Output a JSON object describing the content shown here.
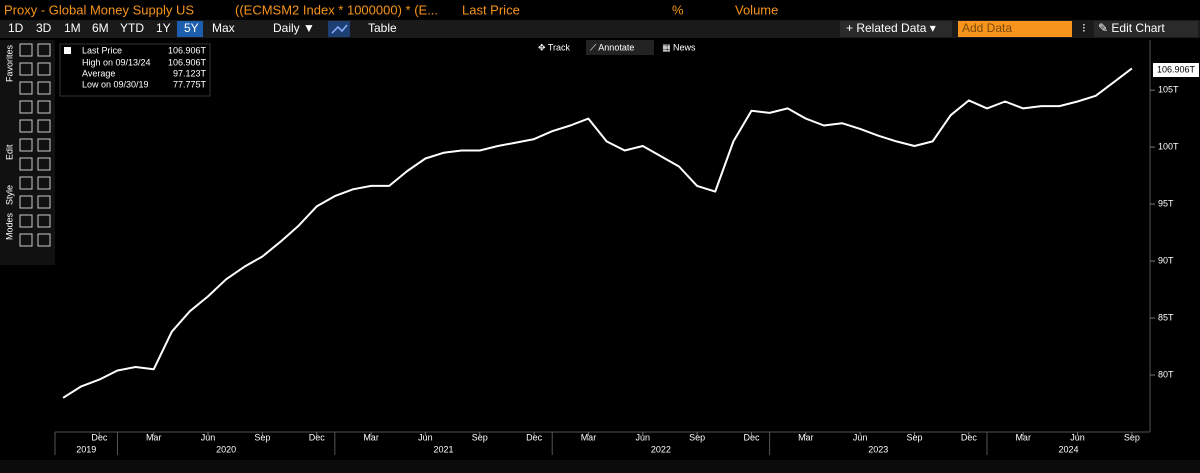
{
  "header": {
    "title": "Proxy - Global Money Supply US",
    "formula": "((ECMSM2 Index * 1000000) * (E...",
    "field": "Last Price",
    "percent": "%",
    "volume": "Volume"
  },
  "toolbar": {
    "ranges": [
      "1D",
      "3D",
      "1M",
      "6M",
      "YTD",
      "1Y",
      "5Y",
      "Max"
    ],
    "active": "5Y",
    "period": "Daily ▼",
    "table": "Table",
    "related": "+ Related Data ▾",
    "add": "Add Data",
    "edit": "✎ Edit Chart"
  },
  "side_tabs": [
    "Favorites",
    "Edit",
    "Style",
    "Modes"
  ],
  "chart_tools": [
    "✥ Track",
    "⟋ Annotate",
    "▦ News"
  ],
  "legend_stats": [
    {
      "label": "High on 09/13/24",
      "value": "106.906T"
    },
    {
      "label": "Average",
      "value": "97.123T"
    },
    {
      "label": "Low on 09/30/19",
      "value": "77.775T"
    }
  ],
  "last_value_label": "106.906T",
  "chart_data": {
    "type": "line",
    "x": [
      "2019-10",
      "2019-11",
      "2019-12",
      "2020-01",
      "2020-02",
      "2020-03",
      "2020-04",
      "2020-05",
      "2020-06",
      "2020-07",
      "2020-08",
      "2020-09",
      "2020-10",
      "2020-11",
      "2020-12",
      "2021-01",
      "2021-02",
      "2021-03",
      "2021-04",
      "2021-05",
      "2021-06",
      "2021-07",
      "2021-08",
      "2021-09",
      "2021-10",
      "2021-11",
      "2021-12",
      "2022-01",
      "2022-02",
      "2022-03",
      "2022-04",
      "2022-05",
      "2022-06",
      "2022-07",
      "2022-08",
      "2022-09",
      "2022-10",
      "2022-11",
      "2022-12",
      "2023-01",
      "2023-02",
      "2023-03",
      "2023-04",
      "2023-05",
      "2023-06",
      "2023-07",
      "2023-08",
      "2023-09",
      "2023-10",
      "2023-11",
      "2023-12",
      "2024-01",
      "2024-02",
      "2024-03",
      "2024-04",
      "2024-05",
      "2024-06",
      "2024-07",
      "2024-08",
      "2024-09"
    ],
    "series": [
      {
        "name": "Last Price",
        "color": "#ffffff",
        "values": [
          78.0,
          79.0,
          79.6,
          80.4,
          80.7,
          80.5,
          83.8,
          85.6,
          86.9,
          88.4,
          89.5,
          90.4,
          91.7,
          93.1,
          94.8,
          95.7,
          96.3,
          96.6,
          96.6,
          97.9,
          99.0,
          99.5,
          99.7,
          99.7,
          100.1,
          100.4,
          100.7,
          101.4,
          101.9,
          102.5,
          100.5,
          99.7,
          100.1,
          99.2,
          98.3,
          96.6,
          96.1,
          100.5,
          103.2,
          103.0,
          103.4,
          102.5,
          101.9,
          102.1,
          101.6,
          101.0,
          100.5,
          100.1,
          100.5,
          102.8,
          104.1,
          103.4,
          104.0,
          103.4,
          103.6,
          103.6,
          104.0,
          104.5,
          105.7,
          106.906
        ]
      }
    ],
    "xlim": [
      "2019-09",
      "2024-10"
    ],
    "xticks": [
      {
        "value": "2019-12",
        "label": "Dec"
      },
      {
        "value": "2020-03",
        "label": "Mar"
      },
      {
        "value": "2020-06",
        "label": "Jun"
      },
      {
        "value": "2020-09",
        "label": "Sep"
      },
      {
        "value": "2020-12",
        "label": "Dec"
      },
      {
        "value": "2021-03",
        "label": "Mar"
      },
      {
        "value": "2021-06",
        "label": "Jun"
      },
      {
        "value": "2021-09",
        "label": "Sep"
      },
      {
        "value": "2021-12",
        "label": "Dec"
      },
      {
        "value": "2022-03",
        "label": "Mar"
      },
      {
        "value": "2022-06",
        "label": "Jun"
      },
      {
        "value": "2022-09",
        "label": "Sep"
      },
      {
        "value": "2022-12",
        "label": "Dec"
      },
      {
        "value": "2023-03",
        "label": "Mar"
      },
      {
        "value": "2023-06",
        "label": "Jun"
      },
      {
        "value": "2023-09",
        "label": "Sep"
      },
      {
        "value": "2023-12",
        "label": "Dec"
      },
      {
        "value": "2024-03",
        "label": "Mar"
      },
      {
        "value": "2024-06",
        "label": "Jun"
      },
      {
        "value": "2024-09",
        "label": "Sep"
      }
    ],
    "years": [
      2019,
      2020,
      2021,
      2022,
      2023,
      2024
    ],
    "ylim": [
      75,
      109.4
    ],
    "yticks": [
      {
        "value": 80,
        "label": "80T"
      },
      {
        "value": 85,
        "label": "85T"
      },
      {
        "value": 90,
        "label": "90T"
      },
      {
        "value": 95,
        "label": "95T"
      },
      {
        "value": 100,
        "label": "100T"
      },
      {
        "value": 105,
        "label": "105T"
      }
    ],
    "grid": false
  }
}
